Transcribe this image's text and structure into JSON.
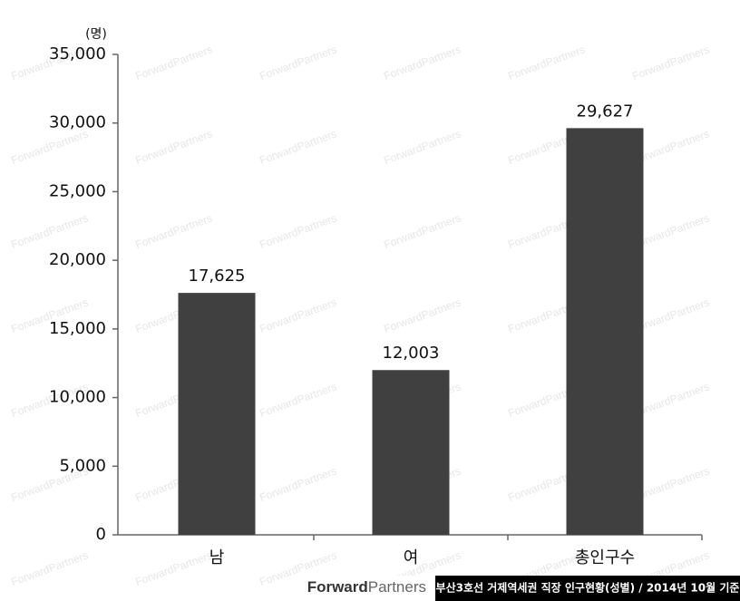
{
  "chart_data": {
    "type": "bar",
    "unit_label": "(명)",
    "categories": [
      "남",
      "여",
      "총인구수"
    ],
    "values": [
      17625,
      12003,
      29627
    ],
    "value_labels": [
      "17,625",
      "12,003",
      "29,627"
    ],
    "color": "#404040",
    "ylim": [
      0,
      35000
    ],
    "yticks": [
      0,
      {
        "value": 5000,
        "label": "5,000"
      },
      {
        "value": 10000,
        "label": "10,000"
      },
      {
        "value": 15000,
        "label": "15,000"
      },
      {
        "value": 20000,
        "label": "20,000"
      },
      {
        "value": 25000,
        "label": "25,000"
      },
      {
        "value": 30000,
        "label": "30,000"
      },
      {
        "value": 35000,
        "label": "35,000"
      }
    ],
    "grid": false
  },
  "watermark": "ForwardPartners",
  "footer": {
    "brand_bold": "Forward",
    "brand_light": "Partners",
    "source": "부산3호선 거제역세권 직장 인구현황(성별) / 2014년 10월 기준"
  }
}
